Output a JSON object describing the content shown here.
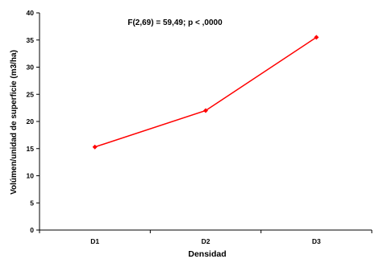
{
  "chart_data": {
    "type": "line",
    "annotation": "F(2,69) = 59,49; p < ,0000",
    "xlabel": "Densidad",
    "ylabel": "Volúmen/unidad de superficie (m3/ha)",
    "categories": [
      "D1",
      "D2",
      "D3"
    ],
    "series": [
      {
        "values": [
          15.3,
          22.0,
          35.5
        ],
        "color": "#ff0000"
      }
    ],
    "ylim": [
      0,
      40
    ],
    "yticks": [
      0,
      5,
      10,
      15,
      20,
      25,
      30,
      35,
      40
    ],
    "grid": false,
    "legend": "none"
  }
}
